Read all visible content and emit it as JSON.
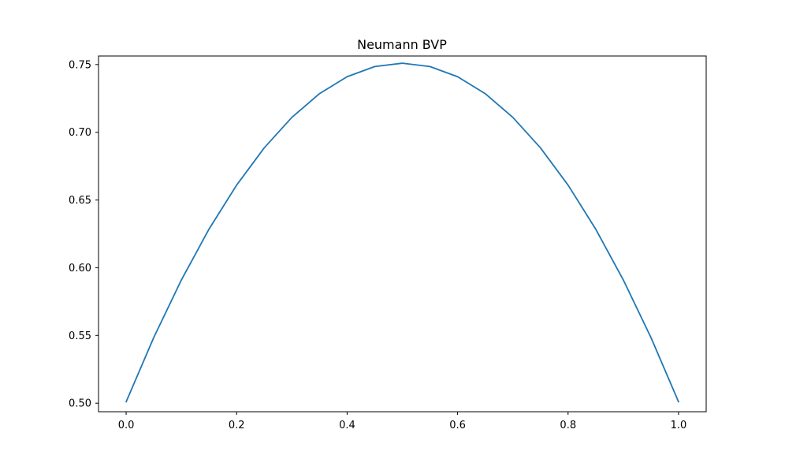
{
  "chart_data": {
    "type": "line",
    "title": "Neumann BVP",
    "xlabel": "",
    "ylabel": "",
    "xlim": [
      -0.05,
      1.05
    ],
    "ylim": [
      0.4937,
      0.7563
    ],
    "xticks": [
      0.0,
      0.2,
      0.4,
      0.6,
      0.8,
      1.0
    ],
    "xtick_labels": [
      "0.0",
      "0.2",
      "0.4",
      "0.6",
      "0.8",
      "1.0"
    ],
    "yticks": [
      0.5,
      0.55,
      0.6,
      0.65,
      0.7,
      0.75
    ],
    "ytick_labels": [
      "0.50",
      "0.55",
      "0.60",
      "0.65",
      "0.70",
      "0.75"
    ],
    "grid": false,
    "legend": false,
    "series": [
      {
        "color": "#1f77b4",
        "x": [
          0.0,
          0.05,
          0.1,
          0.15,
          0.2,
          0.25,
          0.3,
          0.35,
          0.4,
          0.45,
          0.5,
          0.55,
          0.6,
          0.65,
          0.7,
          0.75,
          0.8,
          0.85,
          0.9,
          0.95,
          1.0
        ],
        "y": [
          0.501,
          0.5485,
          0.591,
          0.6285,
          0.661,
          0.6885,
          0.711,
          0.7285,
          0.741,
          0.7485,
          0.751,
          0.7485,
          0.741,
          0.7285,
          0.711,
          0.6885,
          0.661,
          0.6285,
          0.591,
          0.5485,
          0.501
        ]
      }
    ]
  }
}
